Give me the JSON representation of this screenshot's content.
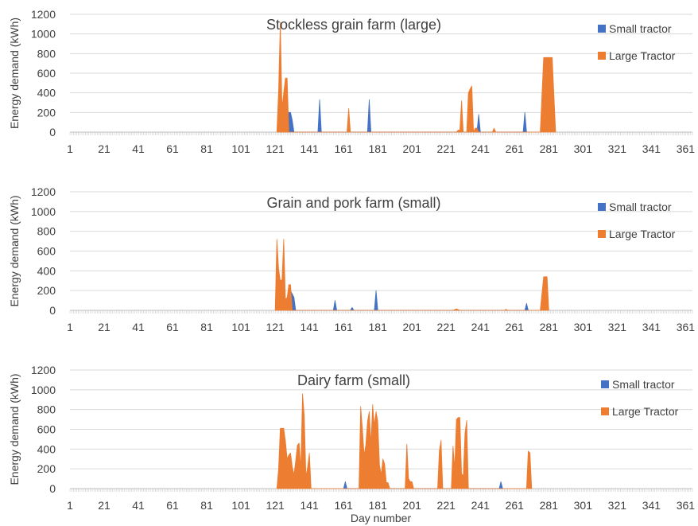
{
  "colors": {
    "small_tractor": "#4472C4",
    "large_tractor": "#ED7D31",
    "gridline": "#D9D9D9",
    "text": "#404040"
  },
  "x_axis": {
    "label": "Day number",
    "tick_labels": [
      "1",
      "21",
      "41",
      "61",
      "81",
      "101",
      "121",
      "141",
      "161",
      "181",
      "201",
      "221",
      "241",
      "261",
      "281",
      "301",
      "321",
      "341",
      "361"
    ]
  },
  "y_axis": {
    "label": "Energy demand (kWh)",
    "tick_labels": [
      "0",
      "200",
      "400",
      "600",
      "800",
      "1000",
      "1200"
    ]
  },
  "chart_data": [
    {
      "type": "area",
      "title": "Stockless grain farm (large)",
      "xlabel": "",
      "ylabel": "Energy demand (kWh)",
      "xlim": [
        1,
        365
      ],
      "ylim": [
        0,
        1200
      ],
      "grid": true,
      "legend_position": "top-right",
      "series": [
        {
          "name": "Small tractor",
          "color": "#4472C4",
          "points": [
            [
              124,
              0
            ],
            [
              126,
              300
            ],
            [
              128,
              200
            ],
            [
              130,
              200
            ],
            [
              131,
              120
            ],
            [
              132,
              0
            ],
            [
              146,
              0
            ],
            [
              147,
              330
            ],
            [
              148,
              0
            ],
            [
              175,
              0
            ],
            [
              176,
              330
            ],
            [
              177,
              0
            ],
            [
              239,
              0
            ],
            [
              240,
              180
            ],
            [
              241,
              0
            ],
            [
              266,
              0
            ],
            [
              267,
              200
            ],
            [
              268,
              0
            ]
          ]
        },
        {
          "name": "Large Tractor",
          "color": "#ED7D31",
          "points": [
            [
              122,
              0
            ],
            [
              123,
              420
            ],
            [
              124,
              1120
            ],
            [
              125,
              250
            ],
            [
              126,
              400
            ],
            [
              127,
              550
            ],
            [
              128,
              550
            ],
            [
              129,
              0
            ],
            [
              163,
              0
            ],
            [
              164,
              240
            ],
            [
              165,
              0
            ],
            [
              227,
              0
            ],
            [
              228,
              20
            ],
            [
              229,
              20
            ],
            [
              230,
              320
            ],
            [
              231,
              0
            ],
            [
              233,
              0
            ],
            [
              234,
              400
            ],
            [
              235,
              440
            ],
            [
              236,
              470
            ],
            [
              237,
              0
            ],
            [
              238,
              40
            ],
            [
              239,
              40
            ],
            [
              240,
              0
            ],
            [
              248,
              0
            ],
            [
              249,
              40
            ],
            [
              250,
              0
            ],
            [
              276,
              0
            ],
            [
              278,
              760
            ],
            [
              283,
              760
            ],
            [
              285,
              0
            ]
          ]
        }
      ]
    },
    {
      "type": "area",
      "title": "Grain and pork farm (small)",
      "xlabel": "",
      "ylabel": "Energy demand (kWh)",
      "xlim": [
        1,
        365
      ],
      "ylim": [
        0,
        1200
      ],
      "grid": true,
      "legend_position": "top-right",
      "series": [
        {
          "name": "Small tractor",
          "color": "#4472C4",
          "points": [
            [
              128,
              0
            ],
            [
              130,
              200
            ],
            [
              132,
              130
            ],
            [
              133,
              0
            ],
            [
              155,
              0
            ],
            [
              156,
              100
            ],
            [
              157,
              0
            ],
            [
              165,
              0
            ],
            [
              166,
              30
            ],
            [
              167,
              0
            ],
            [
              179,
              0
            ],
            [
              180,
              200
            ],
            [
              181,
              0
            ],
            [
              267,
              0
            ],
            [
              268,
              70
            ],
            [
              269,
              0
            ]
          ]
        },
        {
          "name": "Large Tractor",
          "color": "#ED7D31",
          "points": [
            [
              121,
              0
            ],
            [
              122,
              720
            ],
            [
              123,
              420
            ],
            [
              124,
              300
            ],
            [
              125,
              310
            ],
            [
              126,
              720
            ],
            [
              127,
              110
            ],
            [
              128,
              130
            ],
            [
              129,
              260
            ],
            [
              130,
              260
            ],
            [
              131,
              0
            ],
            [
              225,
              0
            ],
            [
              227,
              15
            ],
            [
              229,
              0
            ],
            [
              255,
              0
            ],
            [
              256,
              10
            ],
            [
              257,
              0
            ],
            [
              276,
              0
            ],
            [
              278,
              340
            ],
            [
              280,
              340
            ],
            [
              281,
              0
            ]
          ]
        }
      ]
    },
    {
      "type": "area",
      "title": "Dairy farm (small)",
      "xlabel": "Day number",
      "ylabel": "Energy demand (kWh)",
      "xlim": [
        1,
        365
      ],
      "ylim": [
        0,
        1200
      ],
      "grid": true,
      "legend_position": "top-right",
      "series": [
        {
          "name": "Small tractor",
          "color": "#4472C4",
          "points": [
            [
              161,
              0
            ],
            [
              162,
              70
            ],
            [
              163,
              0
            ],
            [
              252,
              0
            ],
            [
              253,
              70
            ],
            [
              254,
              0
            ]
          ]
        },
        {
          "name": "Large Tractor",
          "color": "#ED7D31",
          "points": [
            [
              122,
              0
            ],
            [
              123,
              200
            ],
            [
              124,
              610
            ],
            [
              126,
              610
            ],
            [
              127,
              480
            ],
            [
              128,
              300
            ],
            [
              129,
              340
            ],
            [
              130,
              360
            ],
            [
              131,
              220
            ],
            [
              132,
              140
            ],
            [
              133,
              280
            ],
            [
              134,
              440
            ],
            [
              135,
              460
            ],
            [
              136,
              200
            ],
            [
              137,
              960
            ],
            [
              138,
              740
            ],
            [
              139,
              120
            ],
            [
              140,
              220
            ],
            [
              141,
              360
            ],
            [
              142,
              0
            ],
            [
              170,
              0
            ],
            [
              171,
              830
            ],
            [
              172,
              610
            ],
            [
              173,
              340
            ],
            [
              174,
              440
            ],
            [
              175,
              680
            ],
            [
              176,
              780
            ],
            [
              177,
              450
            ],
            [
              178,
              850
            ],
            [
              179,
              640
            ],
            [
              180,
              780
            ],
            [
              181,
              680
            ],
            [
              182,
              240
            ],
            [
              183,
              140
            ],
            [
              184,
              300
            ],
            [
              185,
              250
            ],
            [
              186,
              60
            ],
            [
              187,
              60
            ],
            [
              188,
              0
            ],
            [
              197,
              0
            ],
            [
              198,
              450
            ],
            [
              199,
              100
            ],
            [
              200,
              70
            ],
            [
              201,
              70
            ],
            [
              202,
              0
            ],
            [
              216,
              0
            ],
            [
              217,
              380
            ],
            [
              218,
              490
            ],
            [
              219,
              0
            ],
            [
              224,
              0
            ],
            [
              225,
              430
            ],
            [
              226,
              210
            ],
            [
              227,
              700
            ],
            [
              228,
              720
            ],
            [
              229,
              720
            ],
            [
              230,
              150
            ],
            [
              231,
              130
            ],
            [
              232,
              560
            ],
            [
              233,
              690
            ],
            [
              234,
              0
            ],
            [
              268,
              0
            ],
            [
              269,
              380
            ],
            [
              270,
              360
            ],
            [
              271,
              0
            ]
          ]
        }
      ]
    }
  ]
}
